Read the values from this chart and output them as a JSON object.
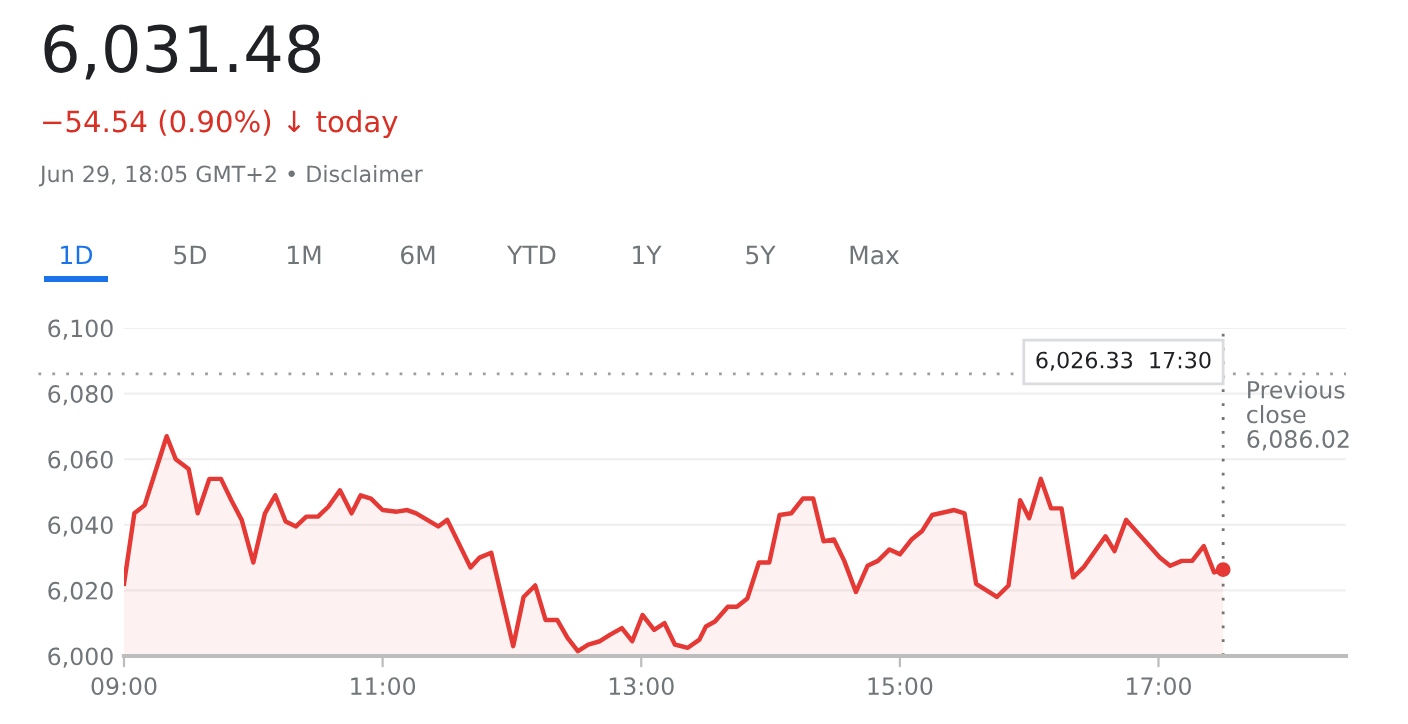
{
  "chart_data": {
    "type": "area",
    "title": "6,031.48",
    "subtitle": "−54.54 (0.90%) ↓ today",
    "annotations": [
      "Jun 29, 18:05 GMT+2 • Disclaimer",
      "1D",
      "5D",
      "1M",
      "6M",
      "YTD",
      "1Y",
      "5Y",
      "Max",
      "6,026.33  17:30"
    ],
    "x": [
      9.0,
      9.08,
      9.16,
      9.33,
      9.4,
      9.5,
      9.57,
      9.66,
      9.75,
      9.83,
      9.91,
      10.0,
      10.09,
      10.17,
      10.25,
      10.33,
      10.41,
      10.5,
      10.58,
      10.67,
      10.76,
      10.83,
      10.91,
      11.0,
      11.11,
      11.19,
      11.26,
      11.43,
      11.5,
      11.68,
      11.75,
      11.84,
      12.01,
      12.09,
      12.18,
      12.26,
      12.35,
      12.43,
      12.51,
      12.59,
      12.68,
      12.76,
      12.85,
      12.93,
      13.01,
      13.1,
      13.18,
      13.26,
      13.36,
      13.45,
      13.5,
      13.57,
      13.67,
      13.74,
      13.82,
      13.91,
      13.99,
      14.07,
      14.16,
      14.25,
      14.33,
      14.41,
      14.49,
      14.57,
      14.66,
      14.75,
      14.83,
      14.92,
      15.0,
      15.09,
      15.17,
      15.25,
      15.42,
      15.5,
      15.59,
      15.75,
      15.84,
      15.93,
      16.0,
      16.09,
      16.17,
      16.25,
      16.34,
      16.42,
      16.59,
      16.66,
      16.75,
      17.01,
      17.09,
      17.18,
      17.26,
      17.35,
      17.43,
      17.5
    ],
    "series": [
      {
        "color": "#e53935",
        "values": [
          6022,
          6043.5,
          6046,
          6067,
          6060,
          6057,
          6043.5,
          6054,
          6054,
          6047.5,
          6041.5,
          6028.5,
          6043.5,
          6049,
          6041,
          6039.5,
          6042.5,
          6042.5,
          6045.5,
          6050.5,
          6043.5,
          6049,
          6048,
          6044.5,
          6044,
          6044.5,
          6043.5,
          6039.5,
          6041.5,
          6027,
          6030,
          6031.5,
          6003,
          6018,
          6021.5,
          6011,
          6011,
          6005.5,
          6001.5,
          6003.5,
          6004.5,
          6006.5,
          6008.5,
          6004.5,
          6012.5,
          6008,
          6010,
          6003.5,
          6002.5,
          6005,
          6009,
          6010.5,
          6015,
          6015,
          6017.5,
          6028.5,
          6028.5,
          6043,
          6043.5,
          6048,
          6048,
          6035,
          6035.5,
          6029,
          6019.5,
          6027.5,
          6029,
          6032.5,
          6031,
          6035.5,
          6038,
          6043,
          6044.5,
          6043.5,
          6022,
          6018,
          6021.5,
          6047.5,
          6042,
          6054,
          6045,
          6045,
          6024,
          6027,
          6036.5,
          6032,
          6041.5,
          6030,
          6027.5,
          6029,
          6029,
          6033.5,
          6025.5,
          6026.33
        ]
      },
      {
        "type": "scatter",
        "color": "#e53935",
        "x": [
          17.5
        ],
        "values": [
          6026.33
        ]
      }
    ],
    "xlim": [
      9,
      18.45
    ],
    "ylim": [
      6000,
      6100
    ],
    "xticks": [
      {
        "value": 9,
        "label": "09:00"
      },
      {
        "value": 11,
        "label": "11:00"
      },
      {
        "value": 13,
        "label": "13:00"
      },
      {
        "value": 15,
        "label": "15:00"
      },
      {
        "value": 17,
        "label": "17:00"
      }
    ],
    "yticks": [
      {
        "value": 6000,
        "label": "6,000"
      },
      {
        "value": 6020,
        "label": "6,020"
      },
      {
        "value": 6040,
        "label": "6,040"
      },
      {
        "value": 6060,
        "label": "6,060"
      },
      {
        "value": 6080,
        "label": "6,080"
      },
      {
        "value": 6100,
        "label": "6,100"
      }
    ],
    "ref_lines": [
      {
        "axis": "y",
        "value": 6086.02,
        "label": "Previous\nclose\n6,086.02",
        "color": "#9e9e9e",
        "line_style": "dotted"
      },
      {
        "axis": "x",
        "value": 17.5,
        "color": "#757575",
        "line_style": "dotted"
      }
    ],
    "grid": "y",
    "legend": false
  }
}
